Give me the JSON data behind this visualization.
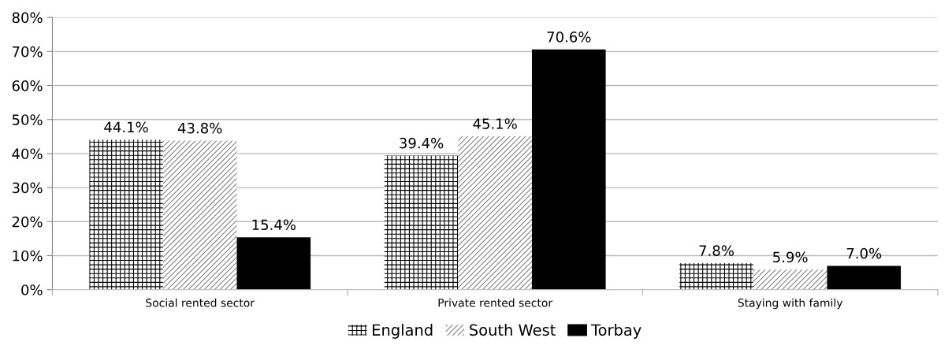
{
  "chart_data": {
    "type": "bar",
    "categories": [
      "Social rented sector",
      "Private rented sector",
      "Staying with family"
    ],
    "series": [
      {
        "name": "England",
        "color": "#000000",
        "values": [
          44.1,
          39.4,
          7.8
        ],
        "value_labels": [
          "44.1%",
          "39.4%",
          "7.8%"
        ]
      },
      {
        "name": "South West",
        "color": "#808080",
        "values": [
          43.8,
          45.1,
          5.9
        ],
        "value_labels": [
          "43.8%",
          "45.1%",
          "5.9%"
        ]
      },
      {
        "name": "Torbay",
        "color": "#000000",
        "values": [
          15.4,
          70.6,
          7.0
        ],
        "value_labels": [
          "15.4%",
          "70.6%",
          "7.0%"
        ]
      }
    ],
    "ylim": [
      0,
      80
    ],
    "yticks": [
      {
        "value": 0,
        "label": "0%"
      },
      {
        "value": 10,
        "label": "10%"
      },
      {
        "value": 20,
        "label": "20%"
      },
      {
        "value": 30,
        "label": "30%"
      },
      {
        "value": 40,
        "label": "40%"
      },
      {
        "value": 50,
        "label": "50%"
      },
      {
        "value": 60,
        "label": "60%"
      },
      {
        "value": 70,
        "label": "70%"
      },
      {
        "value": 80,
        "label": "80%"
      }
    ],
    "grid": "y",
    "legend": "bottom"
  }
}
